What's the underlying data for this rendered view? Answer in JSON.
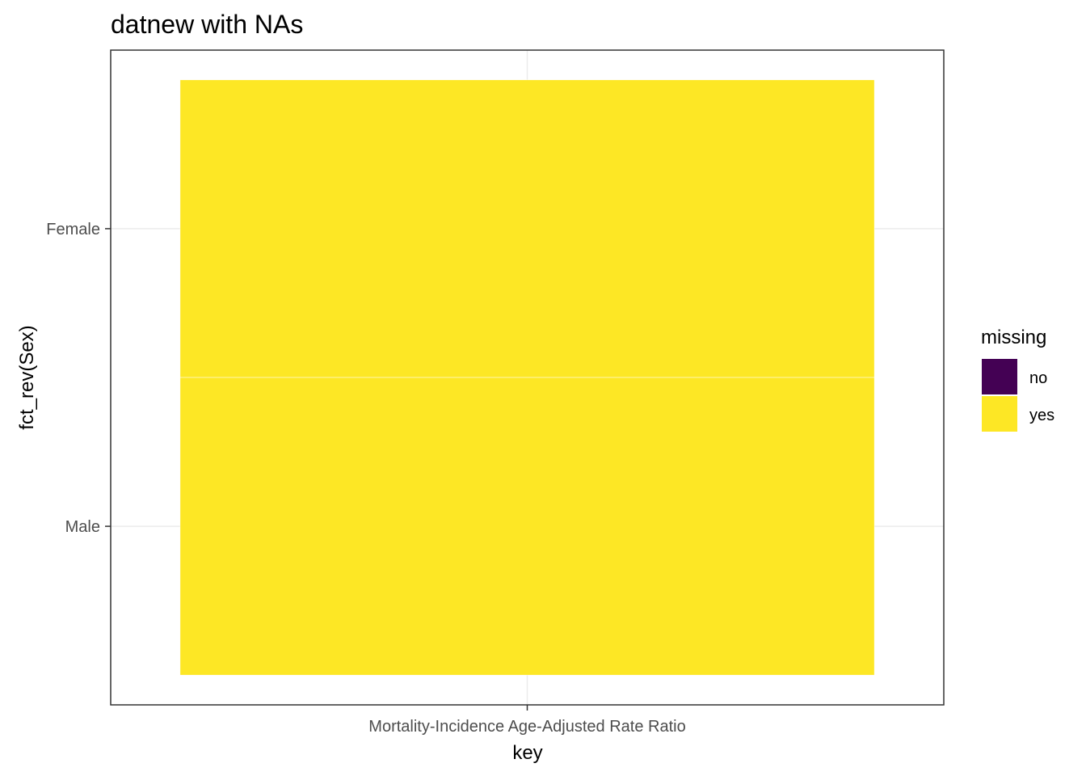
{
  "chart_data": {
    "type": "heatmap",
    "title": "datnew with NAs",
    "xlabel": "key",
    "ylabel": "fct_rev(Sex)",
    "x_categories": [
      "Mortality-Incidence Age-Adjusted Rate Ratio"
    ],
    "y_categories": [
      "Female",
      "Male"
    ],
    "cells": [
      {
        "x": "Mortality-Incidence Age-Adjusted Rate Ratio",
        "y": "Female",
        "missing": "yes"
      },
      {
        "x": "Mortality-Incidence Age-Adjusted Rate Ratio",
        "y": "Male",
        "missing": "yes"
      }
    ],
    "legend": {
      "title": "missing",
      "position": "right",
      "entries": [
        {
          "label": "no",
          "color": "#440154"
        },
        {
          "label": "yes",
          "color": "#FDE725"
        }
      ]
    },
    "grid": true
  }
}
